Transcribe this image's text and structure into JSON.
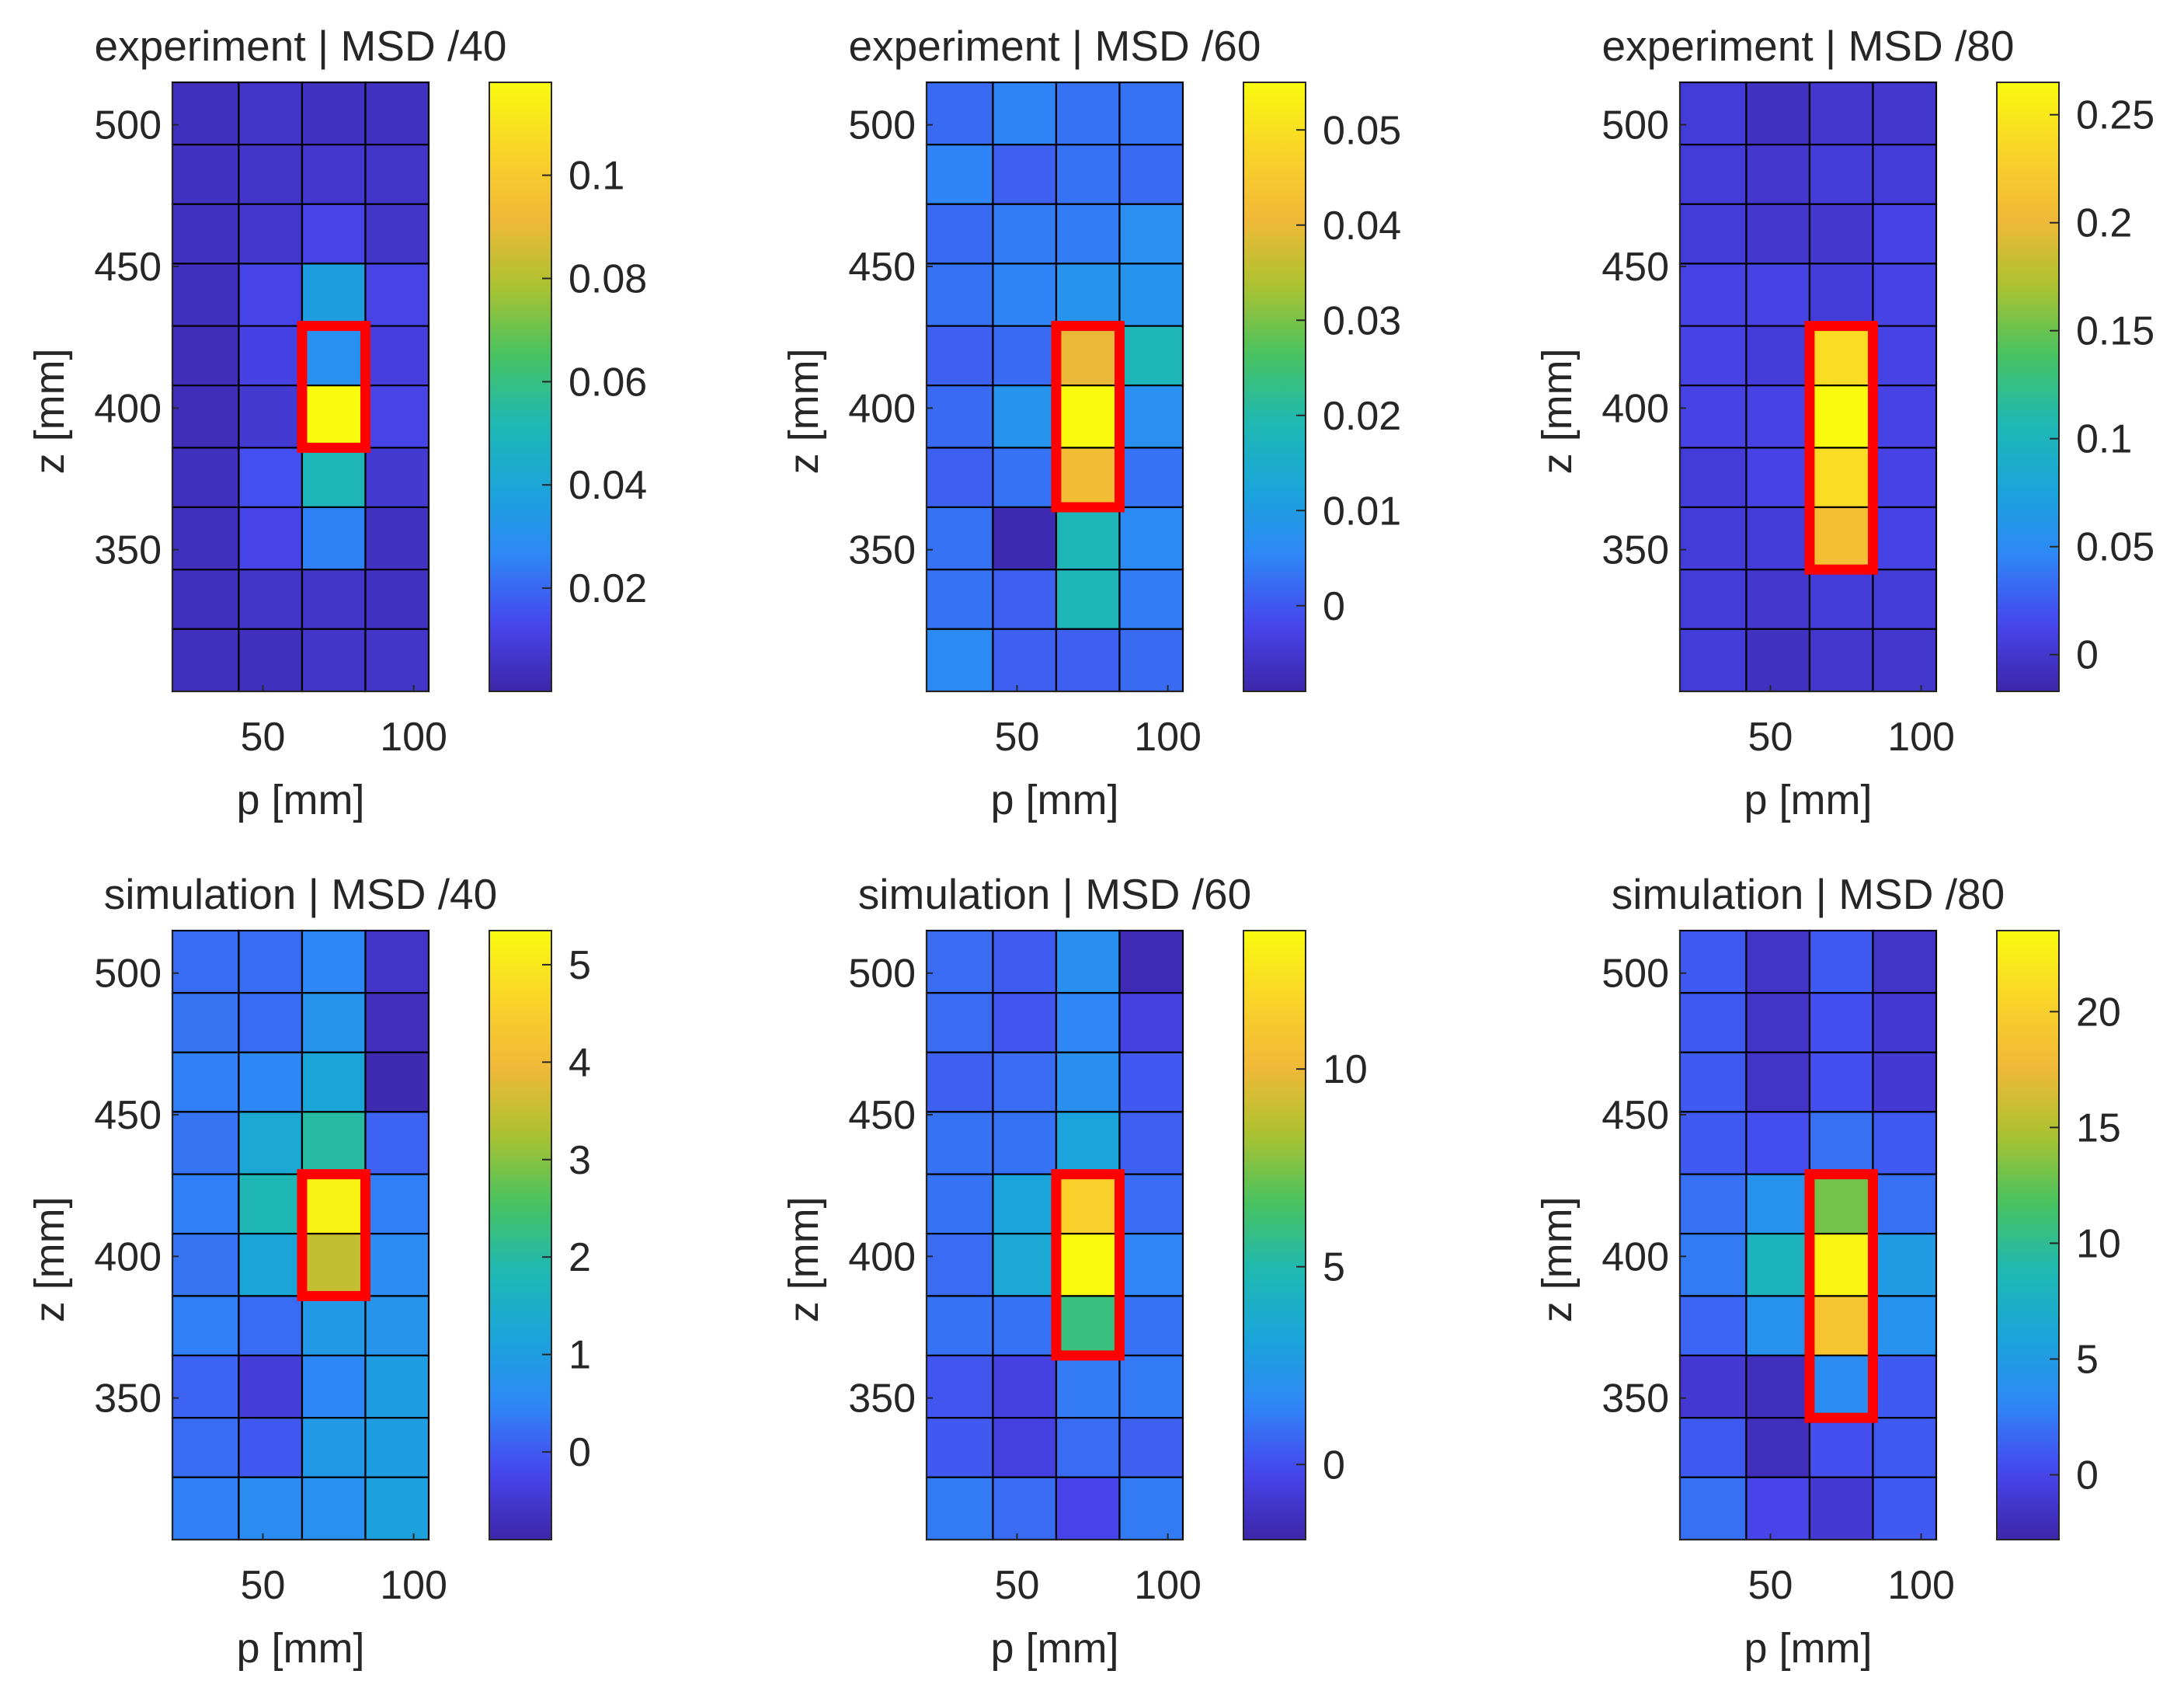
{
  "figure": {
    "colormap": [
      "#3e26a8",
      "#4746ed",
      "#2e87f7",
      "#1aa5da",
      "#1fb9b1",
      "#49c25e",
      "#adc22f",
      "#f2b838",
      "#f9d428",
      "#f9fb0e"
    ],
    "highlight_color": "#ff0000",
    "grid_color": "#000000"
  },
  "chart_data": [
    {
      "type": "heatmap",
      "id": "exp40",
      "row": 0,
      "col": 0,
      "title": "experiment | MSD /40",
      "xlabel": "p [mm]",
      "ylabel": "z [mm]",
      "xlim": [
        20,
        105
      ],
      "ylim": [
        300,
        515
      ],
      "x_edges": [
        20,
        42,
        63,
        84,
        105
      ],
      "y_edges": [
        515,
        493,
        472,
        451,
        429,
        408,
        386,
        365,
        343,
        322,
        300
      ],
      "xticks": [
        50,
        100
      ],
      "yticks": [
        350,
        400,
        450,
        500
      ],
      "clim": [
        0.0,
        0.118
      ],
      "colorbar_ticks": [
        0.02,
        0.04,
        0.06,
        0.08,
        0.1
      ],
      "values": [
        [
          0.004,
          0.006,
          0.005,
          0.005
        ],
        [
          0.005,
          0.006,
          0.007,
          0.006
        ],
        [
          0.005,
          0.007,
          0.012,
          0.006
        ],
        [
          0.004,
          0.012,
          0.036,
          0.012
        ],
        [
          0.003,
          0.011,
          0.03,
          0.01
        ],
        [
          0.003,
          0.008,
          0.118,
          0.012
        ],
        [
          0.004,
          0.015,
          0.05,
          0.008
        ],
        [
          0.004,
          0.012,
          0.025,
          0.005
        ],
        [
          0.004,
          0.006,
          0.006,
          0.005
        ],
        [
          0.004,
          0.004,
          0.006,
          0.006
        ]
      ],
      "highlight": {
        "col_start": 2,
        "col_end": 3,
        "row_start": 4,
        "row_end": 6
      }
    },
    {
      "type": "heatmap",
      "id": "exp60",
      "row": 0,
      "col": 1,
      "title": "experiment | MSD /60",
      "xlabel": "p [mm]",
      "ylabel": "z [mm]",
      "xlim": [
        20,
        105
      ],
      "ylim": [
        300,
        515
      ],
      "x_edges": [
        20,
        42,
        63,
        84,
        105
      ],
      "y_edges": [
        515,
        493,
        472,
        451,
        429,
        408,
        386,
        365,
        343,
        322,
        300
      ],
      "xticks": [
        50,
        100
      ],
      "yticks": [
        350,
        400,
        450,
        500
      ],
      "clim": [
        -0.009,
        0.055
      ],
      "colorbar_ticks": [
        0,
        0.01,
        0.02,
        0.03,
        0.04,
        0.05
      ],
      "values": [
        [
          0.002,
          0.005,
          0.003,
          0.003
        ],
        [
          0.005,
          0.001,
          0.003,
          0.002
        ],
        [
          0.002,
          0.004,
          0.004,
          0.007
        ],
        [
          0.003,
          0.005,
          0.008,
          0.008
        ],
        [
          0.001,
          0.002,
          0.04,
          0.018
        ],
        [
          0.002,
          0.008,
          0.055,
          0.007
        ],
        [
          0.001,
          0.003,
          0.042,
          0.003
        ],
        [
          0.003,
          -0.008,
          0.018,
          0.006
        ],
        [
          0.003,
          0.001,
          0.018,
          0.004
        ],
        [
          0.006,
          0.001,
          0.001,
          0.002
        ]
      ],
      "highlight": {
        "col_start": 2,
        "col_end": 3,
        "row_start": 4,
        "row_end": 7
      }
    },
    {
      "type": "heatmap",
      "id": "exp80",
      "row": 0,
      "col": 2,
      "title": "experiment | MSD /80",
      "xlabel": "p [mm]",
      "ylabel": "z [mm]",
      "xlim": [
        20,
        105
      ],
      "ylim": [
        300,
        515
      ],
      "x_edges": [
        20,
        42,
        63,
        84,
        105
      ],
      "y_edges": [
        515,
        493,
        472,
        451,
        429,
        408,
        386,
        365,
        343,
        322,
        300
      ],
      "xticks": [
        50,
        100
      ],
      "yticks": [
        350,
        400,
        450,
        500
      ],
      "clim": [
        -0.017,
        0.265
      ],
      "colorbar_ticks": [
        0,
        0.05,
        0.1,
        0.15,
        0.2,
        0.25
      ],
      "values": [
        [
          0.005,
          -0.005,
          0.0,
          0.0
        ],
        [
          0.005,
          0.0,
          0.005,
          0.005
        ],
        [
          0.005,
          0.0,
          0.0,
          0.01
        ],
        [
          0.01,
          0.01,
          0.005,
          0.01
        ],
        [
          0.01,
          0.005,
          0.24,
          0.01
        ],
        [
          0.01,
          0.01,
          0.265,
          0.01
        ],
        [
          0.005,
          0.01,
          0.24,
          0.01
        ],
        [
          0.005,
          0.005,
          0.21,
          0.01
        ],
        [
          0.005,
          0.0,
          0.005,
          0.005
        ],
        [
          0.005,
          -0.005,
          0.0,
          0.0
        ]
      ],
      "highlight": {
        "col_start": 2,
        "col_end": 3,
        "row_start": 4,
        "row_end": 8
      }
    },
    {
      "type": "heatmap",
      "id": "sim40",
      "row": 1,
      "col": 0,
      "title": "simulation | MSD /40",
      "xlabel": "p [mm]",
      "ylabel": "z [mm]",
      "xlim": [
        20,
        105
      ],
      "ylim": [
        300,
        515
      ],
      "x_edges": [
        20,
        42,
        63,
        84,
        105
      ],
      "y_edges": [
        515,
        493,
        472,
        451,
        429,
        408,
        386,
        365,
        343,
        322,
        300
      ],
      "xticks": [
        50,
        100
      ],
      "yticks": [
        350,
        400,
        450,
        500
      ],
      "clim": [
        -0.9,
        5.35
      ],
      "colorbar_ticks": [
        0,
        1,
        2,
        3,
        4,
        5
      ],
      "values": [
        [
          0.2,
          0.2,
          0.5,
          -0.6
        ],
        [
          0.3,
          0.2,
          0.8,
          -0.7
        ],
        [
          0.4,
          0.5,
          1.2,
          -0.8
        ],
        [
          0.3,
          1.3,
          2.0,
          0.1
        ],
        [
          0.4,
          1.8,
          5.2,
          0.4
        ],
        [
          0.3,
          1.2,
          3.5,
          0.6
        ],
        [
          0.4,
          0.2,
          0.9,
          0.8
        ],
        [
          0.1,
          -0.4,
          0.5,
          1.0
        ],
        [
          0.2,
          0.0,
          0.9,
          1.0
        ],
        [
          0.4,
          0.6,
          0.7,
          1.1
        ]
      ],
      "highlight": {
        "col_start": 2,
        "col_end": 3,
        "row_start": 4,
        "row_end": 6
      }
    },
    {
      "type": "heatmap",
      "id": "sim60",
      "row": 1,
      "col": 1,
      "title": "simulation | MSD /60",
      "xlabel": "p [mm]",
      "ylabel": "z [mm]",
      "xlim": [
        20,
        105
      ],
      "ylim": [
        300,
        515
      ],
      "x_edges": [
        20,
        42,
        63,
        84,
        105
      ],
      "y_edges": [
        515,
        493,
        472,
        451,
        429,
        408,
        386,
        365,
        343,
        322,
        300
      ],
      "xticks": [
        50,
        100
      ],
      "yticks": [
        350,
        400,
        450,
        500
      ],
      "clim": [
        -1.9,
        13.5
      ],
      "colorbar_ticks": [
        0,
        5,
        10
      ],
      "values": [
        [
          0.8,
          0.4,
          2.0,
          -1.6
        ],
        [
          0.8,
          0.2,
          1.5,
          -0.5
        ],
        [
          0.5,
          0.8,
          2.0,
          0.3
        ],
        [
          1.0,
          1.0,
          3.2,
          0.5
        ],
        [
          1.0,
          3.2,
          11.5,
          0.8
        ],
        [
          0.8,
          3.5,
          13.5,
          1.5
        ],
        [
          1.0,
          1.0,
          6.0,
          1.0
        ],
        [
          0.2,
          -0.5,
          1.2,
          1.2
        ],
        [
          0.3,
          -0.5,
          0.8,
          0.5
        ],
        [
          1.2,
          0.8,
          -0.3,
          1.2
        ]
      ],
      "highlight": {
        "col_start": 2,
        "col_end": 3,
        "row_start": 4,
        "row_end": 7
      }
    },
    {
      "type": "heatmap",
      "id": "sim80",
      "row": 1,
      "col": 2,
      "title": "simulation | MSD /80",
      "xlabel": "p [mm]",
      "ylabel": "z [mm]",
      "xlim": [
        20,
        105
      ],
      "ylim": [
        300,
        515
      ],
      "x_edges": [
        20,
        42,
        63,
        84,
        105
      ],
      "y_edges": [
        515,
        493,
        472,
        451,
        429,
        408,
        386,
        365,
        343,
        322,
        300
      ],
      "xticks": [
        50,
        100
      ],
      "yticks": [
        350,
        400,
        450,
        500
      ],
      "clim": [
        -2.8,
        23.5
      ],
      "colorbar_ticks": [
        0,
        5,
        10,
        15,
        20
      ],
      "values": [
        [
          1.0,
          -1.5,
          1.0,
          -1.5
        ],
        [
          1.0,
          -1.5,
          0.5,
          -1.0
        ],
        [
          1.0,
          -1.5,
          0.5,
          -1.0
        ],
        [
          1.0,
          0.5,
          2.0,
          1.0
        ],
        [
          2.0,
          4.0,
          13.0,
          2.0
        ],
        [
          2.5,
          8.0,
          23.0,
          5.0
        ],
        [
          1.5,
          4.0,
          19.0,
          4.0
        ],
        [
          -1.0,
          -2.0,
          3.5,
          1.0
        ],
        [
          1.0,
          -2.0,
          0.5,
          1.0
        ],
        [
          2.0,
          0.0,
          -1.0,
          1.0
        ]
      ],
      "highlight": {
        "col_start": 2,
        "col_end": 3,
        "row_start": 4,
        "row_end": 8
      }
    }
  ]
}
